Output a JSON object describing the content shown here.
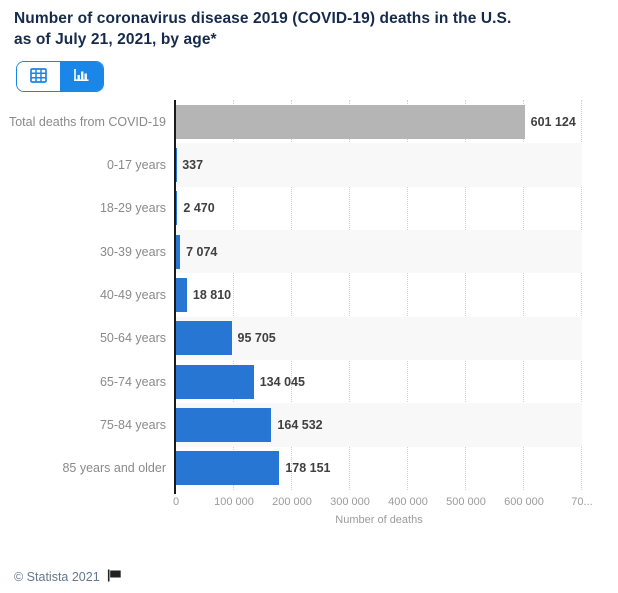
{
  "header": {
    "title_line1": "Number of coronavirus disease 2019 (COVID-19) deaths in the U.S.",
    "title_line2": "as of July 21, 2021, by age*",
    "toggle": {
      "table_icon": "table-grid-icon",
      "chart_icon": "bar-chart-icon",
      "active_view": "chart"
    }
  },
  "chart_data": {
    "type": "bar",
    "orientation": "horizontal",
    "title": "Number of coronavirus disease 2019 (COVID-19) deaths in the U.S. as of July 21, 2021, by age*",
    "categories": [
      "Total deaths from COVID-19",
      "0-17 years",
      "18-29 years",
      "30-39 years",
      "40-49 years",
      "50-64 years",
      "65-74 years",
      "75-84 years",
      "85 years and older"
    ],
    "values": [
      601124,
      337,
      2470,
      7074,
      18810,
      95705,
      134045,
      164532,
      178151
    ],
    "value_labels": [
      "601 124",
      "337",
      "2 470",
      "7 074",
      "18 810",
      "95 705",
      "134 045",
      "164 532",
      "178 151"
    ],
    "xlabel": "Number of deaths",
    "xlim": [
      0,
      700000
    ],
    "x_tick_values": [
      0,
      100000,
      200000,
      300000,
      400000,
      500000,
      600000,
      700000
    ],
    "x_tick_labels": [
      "0",
      "100 000",
      "200 000",
      "300 000",
      "400 000",
      "500 000",
      "600 000",
      "70..."
    ],
    "grid": "dotted-vertical",
    "row_stripes": "alternating",
    "legend": "none"
  },
  "footer": {
    "credit": "© Statista 2021",
    "flag_icon": "flag-icon"
  },
  "colors": {
    "bar": "#2776d3",
    "total_bar": "#b5b5b5",
    "accent": "#1a86e8",
    "title": "#162b4b",
    "category_label": "#8a8a8a",
    "value_label": "#404040",
    "tick_label": "#9b9b9b",
    "stripe": "#f8f8f8",
    "gridline": "#cfcfcf",
    "axis_line": "#1a1a1a",
    "credit": "#647890",
    "flag": "#222222"
  }
}
